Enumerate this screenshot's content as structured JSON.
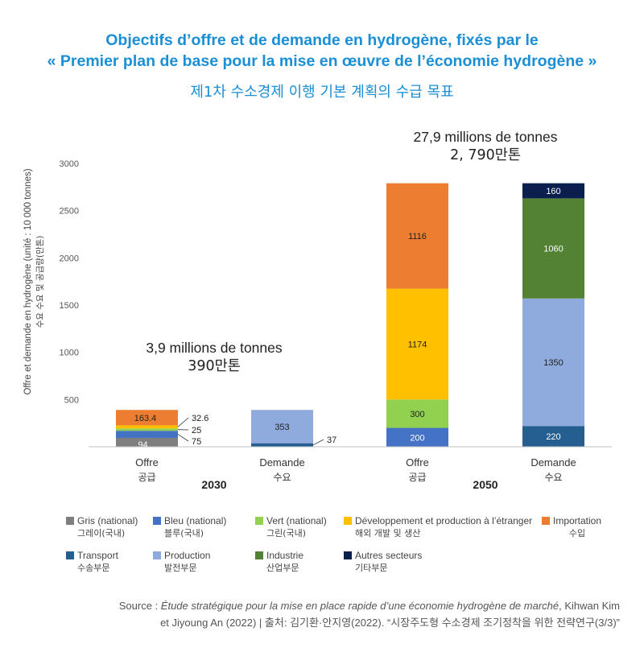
{
  "title_line1": "Objectifs d’offre et de demande en hydrogène, fixés par le",
  "title_line2": "« Premier plan de base pour la mise en œuvre de l’économie hydrogène »",
  "subtitle": "제1차 수소경제 이행 기본 계획의 수급 목표",
  "annotations": {
    "total_2030_fr": "3,9 millions de tonnes",
    "total_2030_ko": "390만톤",
    "total_2050_fr": "27,9 millions de tonnes",
    "total_2050_ko": "2, 790만톤"
  },
  "chart_data": {
    "type": "bar",
    "stacked": true,
    "ylabel_fr": "Offre et demande en hydrogène (unité : 10 000 tonnes)",
    "ylabel_ko": "수요 수요 및 공급량(만톤)",
    "ylim": [
      0,
      3000
    ],
    "yticks": [
      500,
      1000,
      1500,
      2000,
      2500,
      3000
    ],
    "grid": false,
    "legend_position": "bottom",
    "groups": [
      {
        "year": "2030",
        "bars": [
          {
            "label_fr": "Offre",
            "label_ko": "공급",
            "segments": [
              {
                "series": "gris",
                "value": 94,
                "label": "94"
              },
              {
                "series": "bleu",
                "value": 75,
                "label": "75"
              },
              {
                "series": "vert",
                "value": 25,
                "label": "25"
              },
              {
                "series": "dev",
                "value": 32.6,
                "label": "32.6"
              },
              {
                "series": "import",
                "value": 163.4,
                "label": "163.4"
              }
            ]
          },
          {
            "label_fr": "Demande",
            "label_ko": "수요",
            "segments": [
              {
                "series": "transport",
                "value": 37,
                "label": "37"
              },
              {
                "series": "production",
                "value": 353,
                "label": "353"
              }
            ]
          }
        ]
      },
      {
        "year": "2050",
        "bars": [
          {
            "label_fr": "Offre",
            "label_ko": "공급",
            "segments": [
              {
                "series": "bleu",
                "value": 200,
                "label": "200"
              },
              {
                "series": "vert",
                "value": 300,
                "label": "300"
              },
              {
                "series": "dev",
                "value": 1174,
                "label": "1174"
              },
              {
                "series": "import",
                "value": 1116,
                "label": "1116"
              }
            ]
          },
          {
            "label_fr": "Demande",
            "label_ko": "수요",
            "segments": [
              {
                "series": "transport",
                "value": 220,
                "label": "220"
              },
              {
                "series": "production",
                "value": 1350,
                "label": "1350"
              },
              {
                "series": "industrie",
                "value": 1060,
                "label": "1060"
              },
              {
                "series": "autres",
                "value": 160,
                "label": "160"
              }
            ]
          }
        ]
      }
    ],
    "series": [
      {
        "key": "gris",
        "name_fr": "Gris (national)",
        "name_ko": "그레이(국내)",
        "color": "#7f7f7f"
      },
      {
        "key": "bleu",
        "name_fr": "Bleu (national)",
        "name_ko": "블루(국내)",
        "color": "#4472c4"
      },
      {
        "key": "vert",
        "name_fr": "Vert (national)",
        "name_ko": "그린(국내)",
        "color": "#92d050"
      },
      {
        "key": "dev",
        "name_fr": "Développement et production à l’étranger",
        "name_ko": "해외 개발 및 생산",
        "color": "#ffc000"
      },
      {
        "key": "import",
        "name_fr": "Importation",
        "name_ko": "수입",
        "color": "#ed7d31"
      },
      {
        "key": "transport",
        "name_fr": "Transport",
        "name_ko": "수송부문",
        "color": "#255e91"
      },
      {
        "key": "production",
        "name_fr": "Production",
        "name_ko": "발전부문",
        "color": "#8faadc"
      },
      {
        "key": "industrie",
        "name_fr": "Industrie",
        "name_ko": "산업부문",
        "color": "#548235"
      },
      {
        "key": "autres",
        "name_fr": "Autres secteurs",
        "name_ko": "기타부문",
        "color": "#0a1f4d"
      }
    ]
  },
  "source": {
    "prefix": "Source : ",
    "work": "Étude stratégique pour la mise en place rapide d’une économie hydrogène de marché",
    "rest1": ", Kihwan Kim",
    "line2": "et Jiyoung An (2022) | 출처: 김기환·안지영(2022). “시장주도형 수소경제 조기정착을 위한 전략연구(3/3)”"
  }
}
